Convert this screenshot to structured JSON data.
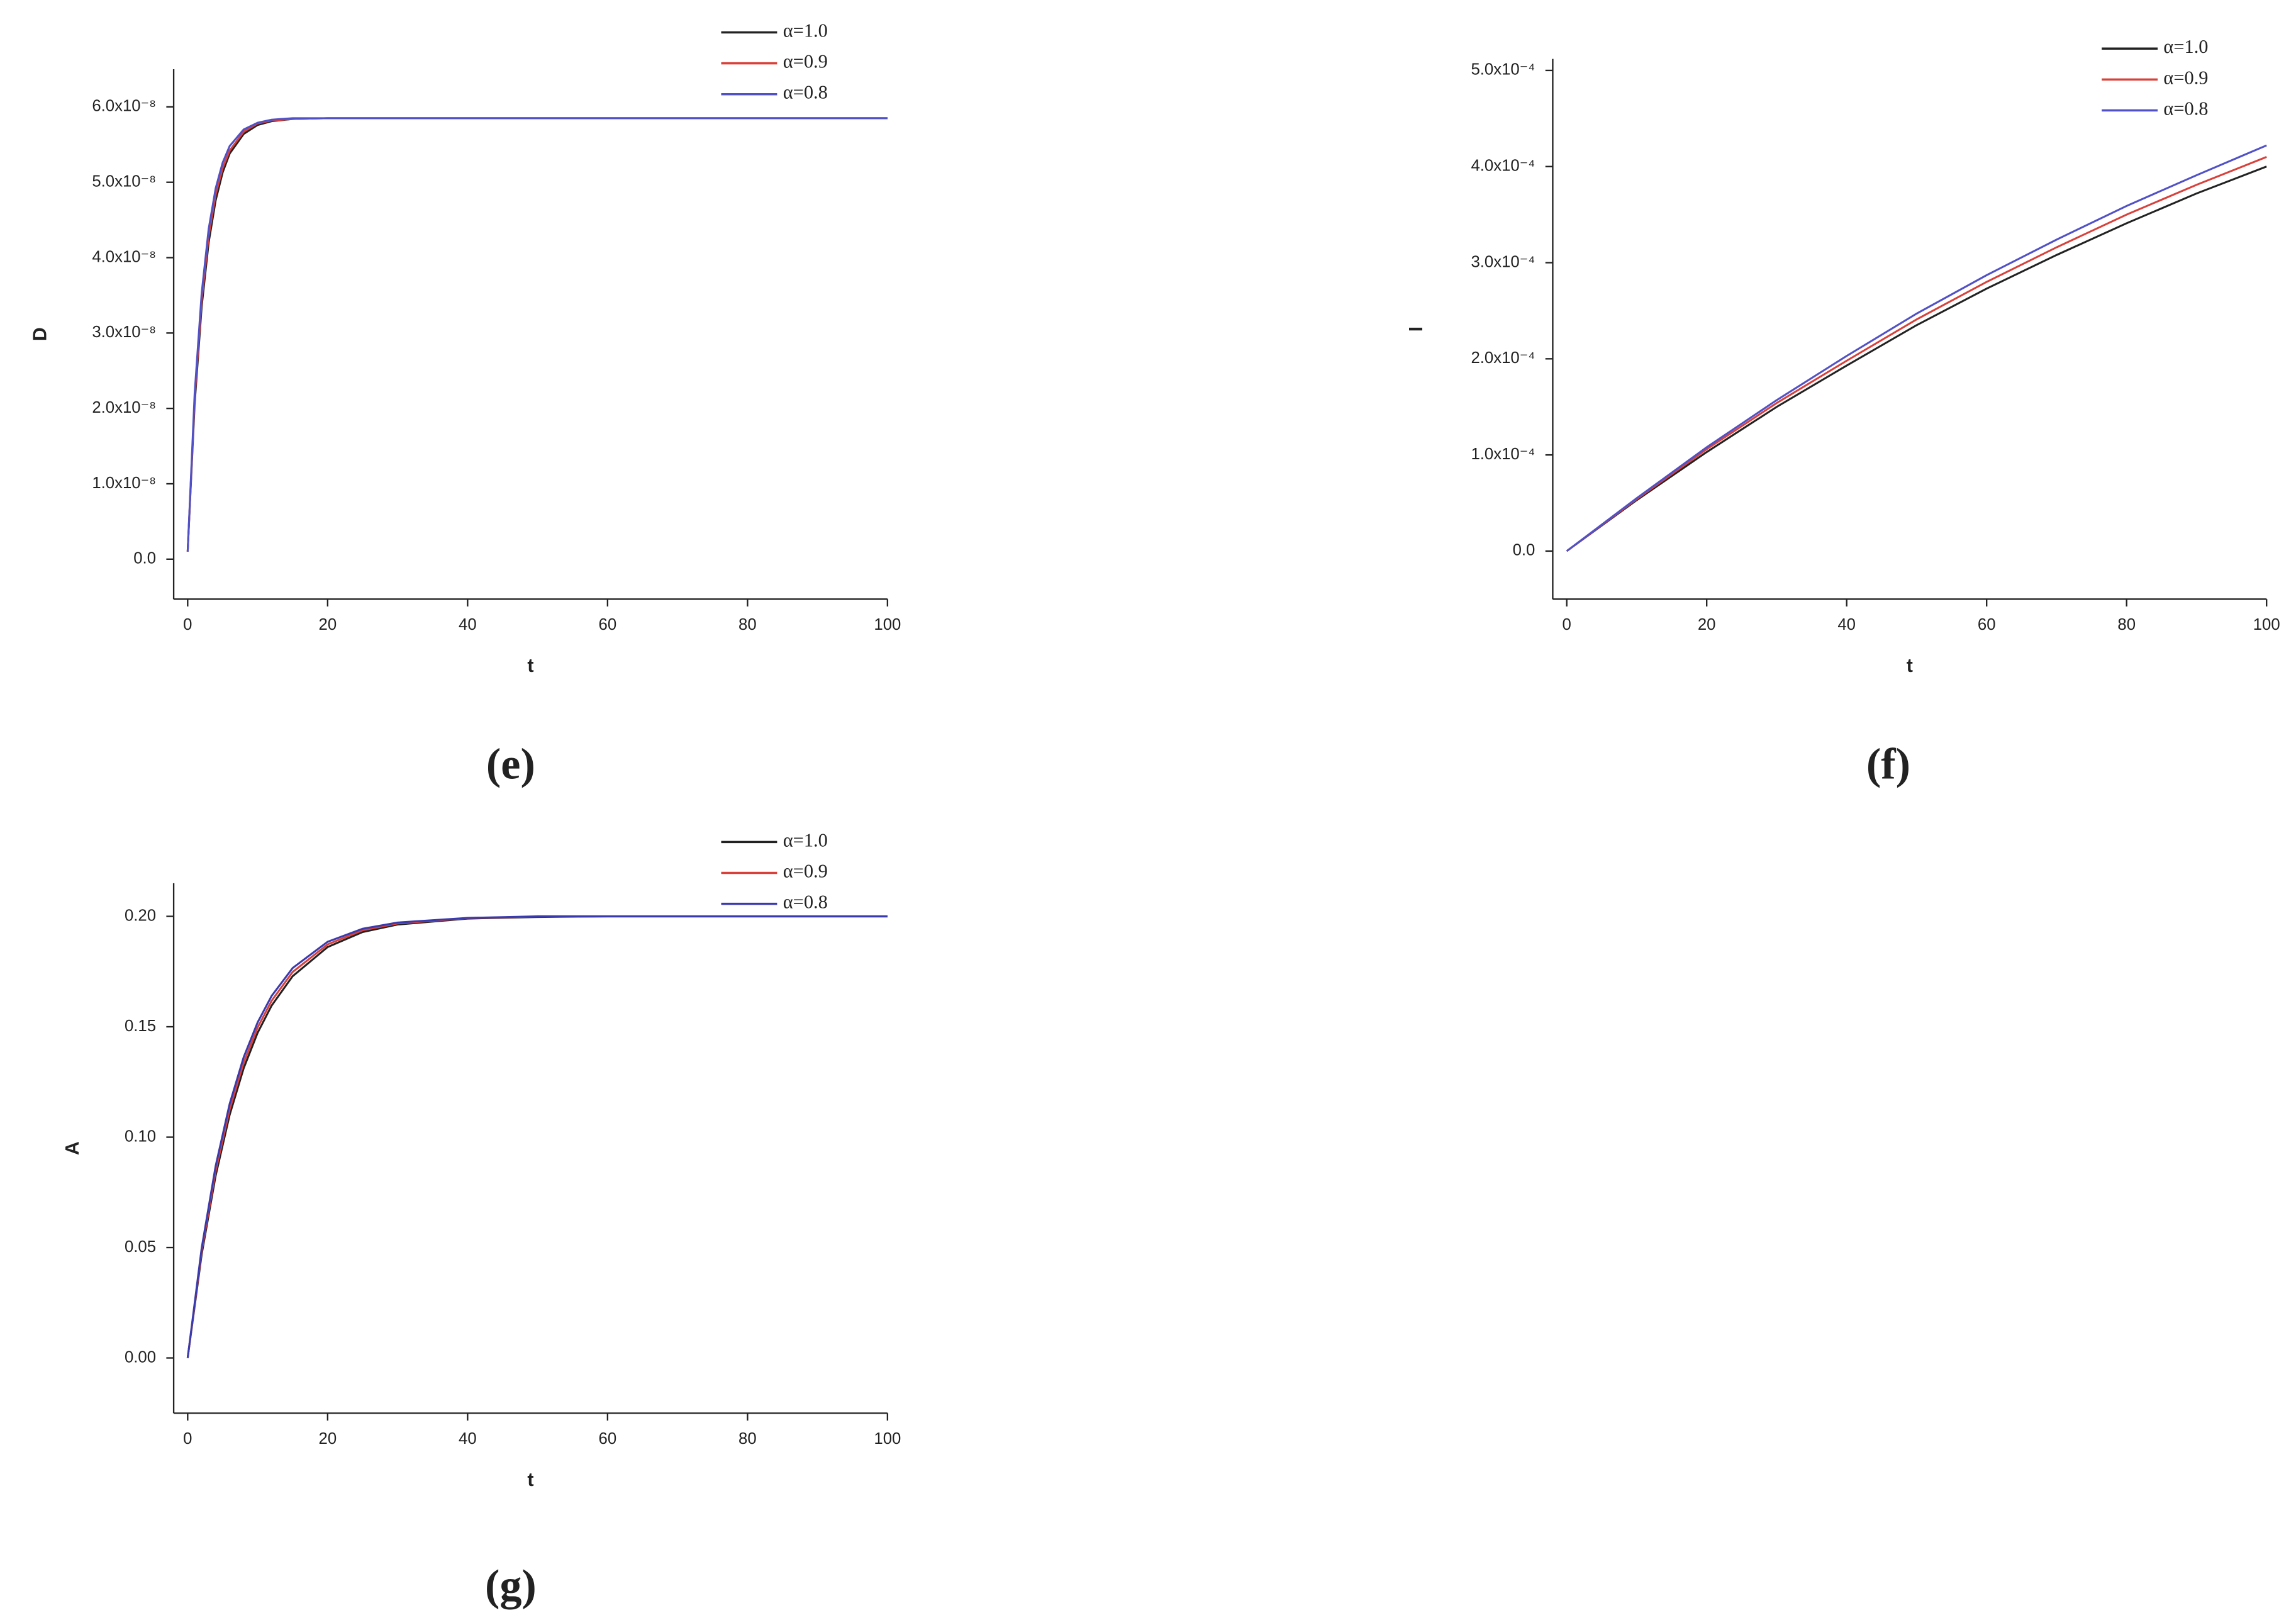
{
  "chart_data": [
    {
      "type": "line",
      "panel_label": "(e)",
      "xlabel": "t",
      "ylabel": "D",
      "x": [
        0,
        1,
        2,
        3,
        4,
        5,
        6,
        8,
        10,
        12,
        15,
        20,
        30,
        40,
        60,
        80,
        100
      ],
      "xlim": [
        -2,
        100
      ],
      "xticks": [
        0,
        20,
        40,
        60,
        80,
        100
      ],
      "ylim": [
        -5.3e-09,
        6.5e-08
      ],
      "yticks": [
        {
          "value": 0,
          "label": "0.0"
        },
        {
          "value": 1e-08,
          "label": "1.0x10⁻⁸"
        },
        {
          "value": 2e-08,
          "label": "2.0x10⁻⁸"
        },
        {
          "value": 3e-08,
          "label": "3.0x10⁻⁸"
        },
        {
          "value": 4e-08,
          "label": "4.0x10⁻⁸"
        },
        {
          "value": 5e-08,
          "label": "5.0x10⁻⁸"
        },
        {
          "value": 6e-08,
          "label": "6.0x10⁻⁸"
        }
      ],
      "series": [
        {
          "name": "α=1.0",
          "color": "#222222",
          "values": [
            1e-09,
            2.06e-08,
            3.35e-08,
            4.2e-08,
            4.76e-08,
            5.13e-08,
            5.38e-08,
            5.64e-08,
            5.76e-08,
            5.81e-08,
            5.84e-08,
            5.85e-08,
            5.85e-08,
            5.85e-08,
            5.85e-08,
            5.85e-08,
            5.85e-08
          ]
        },
        {
          "name": "α=0.9",
          "color": "#d9403a",
          "values": [
            1e-09,
            2.13e-08,
            3.44e-08,
            4.29e-08,
            4.84e-08,
            5.19e-08,
            5.42e-08,
            5.67e-08,
            5.78e-08,
            5.82e-08,
            5.84e-08,
            5.85e-08,
            5.85e-08,
            5.85e-08,
            5.85e-08,
            5.85e-08,
            5.85e-08
          ]
        },
        {
          "name": "α=0.8",
          "color": "#5050c8",
          "values": [
            1e-09,
            2.2e-08,
            3.53e-08,
            4.38e-08,
            4.92e-08,
            5.26e-08,
            5.48e-08,
            5.7e-08,
            5.79e-08,
            5.83e-08,
            5.85e-08,
            5.85e-08,
            5.85e-08,
            5.85e-08,
            5.85e-08,
            5.85e-08,
            5.85e-08
          ]
        }
      ]
    },
    {
      "type": "line",
      "panel_label": "(f)",
      "xlabel": "t",
      "ylabel": "I",
      "x": [
        0,
        10,
        20,
        30,
        40,
        50,
        60,
        70,
        80,
        90,
        100
      ],
      "xlim": [
        -2,
        100
      ],
      "xticks": [
        0,
        20,
        40,
        60,
        80,
        100
      ],
      "ylim": [
        -5e-05,
        0.000512
      ],
      "yticks": [
        {
          "value": 0,
          "label": "0.0"
        },
        {
          "value": 0.0001,
          "label": "1.0x10⁻⁴"
        },
        {
          "value": 0.0002,
          "label": "2.0x10⁻⁴"
        },
        {
          "value": 0.0003,
          "label": "3.0x10⁻⁴"
        },
        {
          "value": 0.0004,
          "label": "4.0x10⁻⁴"
        },
        {
          "value": 0.0005,
          "label": "5.0x10⁻⁴"
        }
      ],
      "series": [
        {
          "name": "α=1.0",
          "color": "#222222",
          "values": [
            0,
            5.3e-05,
            0.000103,
            0.00015,
            0.000193,
            0.000235,
            0.000273,
            0.000308,
            0.000341,
            0.000372,
            0.0004
          ]
        },
        {
          "name": "α=0.9",
          "color": "#d9403a",
          "values": [
            0,
            5.4e-05,
            0.000106,
            0.000154,
            0.000198,
            0.000241,
            0.00028,
            0.000316,
            0.00035,
            0.000381,
            0.00041
          ]
        },
        {
          "name": "α=0.8",
          "color": "#5050c8",
          "values": [
            0,
            5.5e-05,
            0.000108,
            0.000157,
            0.000203,
            0.000247,
            0.000287,
            0.000324,
            0.000359,
            0.000391,
            0.000422
          ]
        }
      ]
    },
    {
      "type": "line",
      "panel_label": "(g)",
      "xlabel": "t",
      "ylabel": "A",
      "x": [
        0,
        2,
        4,
        6,
        8,
        10,
        12,
        15,
        20,
        25,
        30,
        40,
        50,
        60,
        80,
        100
      ],
      "xlim": [
        -2,
        100
      ],
      "xticks": [
        0,
        20,
        40,
        60,
        80,
        100
      ],
      "ylim": [
        -0.025,
        0.215
      ],
      "yticks": [
        {
          "value": 0,
          "label": "0.00"
        },
        {
          "value": 0.05,
          "label": "0.05"
        },
        {
          "value": 0.1,
          "label": "0.10"
        },
        {
          "value": 0.15,
          "label": "0.15"
        },
        {
          "value": 0.2,
          "label": "0.20"
        }
      ],
      "series": [
        {
          "name": "α=1.0",
          "color": "#222222",
          "values": [
            0,
            0.0469,
            0.0826,
            0.1101,
            0.1312,
            0.1473,
            0.1596,
            0.1729,
            0.1861,
            0.1929,
            0.1963,
            0.199,
            0.1997,
            0.2,
            0.2,
            0.2
          ]
        },
        {
          "name": "α=0.9",
          "color": "#d9403a",
          "values": [
            0,
            0.0484,
            0.0848,
            0.1126,
            0.1337,
            0.1497,
            0.1618,
            0.1748,
            0.1873,
            0.1937,
            0.1968,
            0.1992,
            0.1999,
            0.2,
            0.2,
            0.2
          ]
        },
        {
          "name": "α=0.8",
          "color": "#3a3ab0",
          "values": [
            0,
            0.0498,
            0.087,
            0.1151,
            0.1362,
            0.152,
            0.164,
            0.1766,
            0.1885,
            0.1944,
            0.1972,
            0.1993,
            0.2,
            0.2,
            0.2,
            0.2
          ]
        }
      ]
    }
  ]
}
